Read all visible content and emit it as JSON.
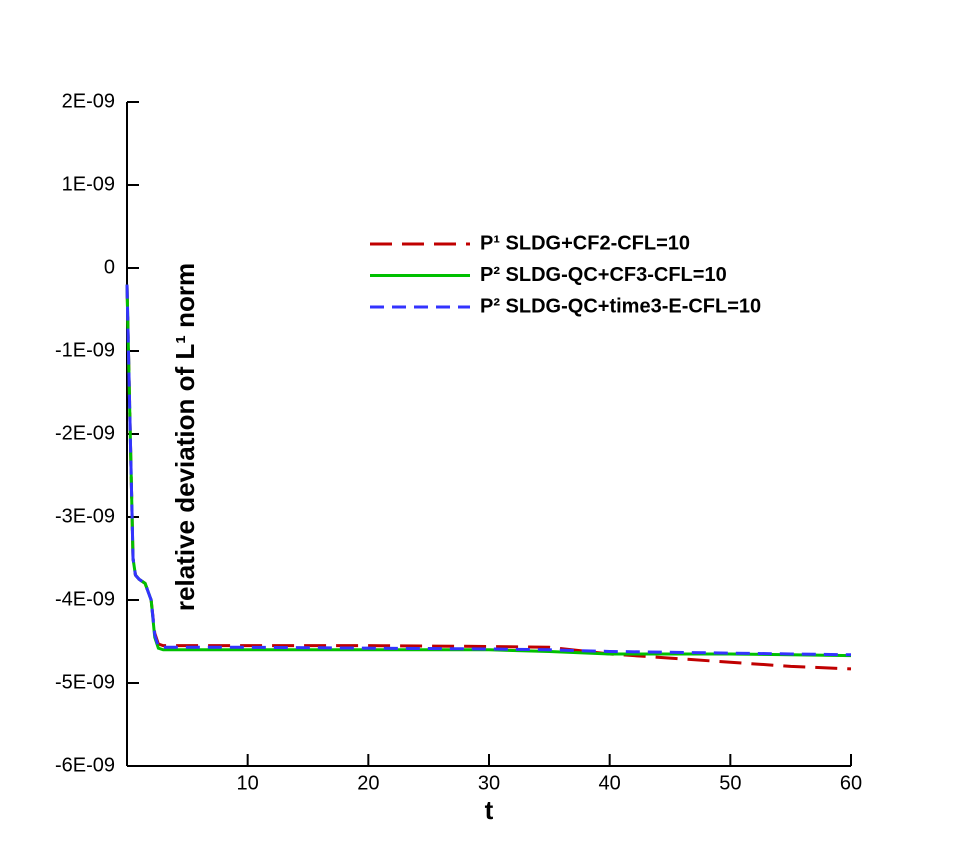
{
  "chart_data": {
    "type": "line",
    "xlabel": "t",
    "ylabel": "relative deviation of L¹ norm",
    "xlim": [
      0,
      60
    ],
    "ylim": [
      -6e-09,
      2e-09
    ],
    "xticks": [
      10,
      20,
      30,
      40,
      50,
      60
    ],
    "yticks": [
      {
        "value": -6e-09,
        "label": "-6E-09"
      },
      {
        "value": -5e-09,
        "label": "-5E-09"
      },
      {
        "value": -4e-09,
        "label": "-4E-09"
      },
      {
        "value": -3e-09,
        "label": "-3E-09"
      },
      {
        "value": -2e-09,
        "label": "-2E-09"
      },
      {
        "value": -1e-09,
        "label": "-1E-09"
      },
      0,
      {
        "value": 1e-09,
        "label": "1E-09"
      },
      {
        "value": 2e-09,
        "label": "2E-09"
      }
    ],
    "x": [
      0,
      0.3,
      0.5,
      0.7,
      1,
      1.5,
      2,
      2.3,
      2.6,
      3,
      10,
      20,
      30,
      35,
      40,
      45,
      50,
      55,
      60
    ],
    "series": [
      {
        "name": "P¹ SLDG+CF2-CFL=10",
        "color": "#c00000",
        "dash": "22,10",
        "values": [
          -2e-10,
          -2.2e-09,
          -3.5e-09,
          -3.7e-09,
          -3.75e-09,
          -3.8e-09,
          -4e-09,
          -4.4e-09,
          -4.53e-09,
          -4.55e-09,
          -4.55e-09,
          -4.55e-09,
          -4.56e-09,
          -4.57e-09,
          -4.65e-09,
          -4.7e-09,
          -4.75e-09,
          -4.8e-09,
          -4.83e-09
        ]
      },
      {
        "name": "P² SLDG-QC+CF3-CFL=10",
        "color": "#00c000",
        "dash": "none",
        "values": [
          -2e-10,
          -2.2e-09,
          -3.5e-09,
          -3.7e-09,
          -3.75e-09,
          -3.8e-09,
          -4e-09,
          -4.45e-09,
          -4.58e-09,
          -4.6e-09,
          -4.6e-09,
          -4.6e-09,
          -4.6e-09,
          -4.62e-09,
          -4.65e-09,
          -4.65e-09,
          -4.65e-09,
          -4.66e-09,
          -4.67e-09
        ]
      },
      {
        "name": "P² SLDG-QC+time3-E-CFL=10",
        "color": "#3333ff",
        "dash": "14,8",
        "values": [
          -2e-10,
          -2.2e-09,
          -3.5e-09,
          -3.7e-09,
          -3.75e-09,
          -3.8e-09,
          -4e-09,
          -4.42e-09,
          -4.56e-09,
          -4.57e-09,
          -4.57e-09,
          -4.58e-09,
          -4.59e-09,
          -4.6e-09,
          -4.62e-09,
          -4.63e-09,
          -4.64e-09,
          -4.65e-09,
          -4.66e-09
        ]
      }
    ]
  }
}
